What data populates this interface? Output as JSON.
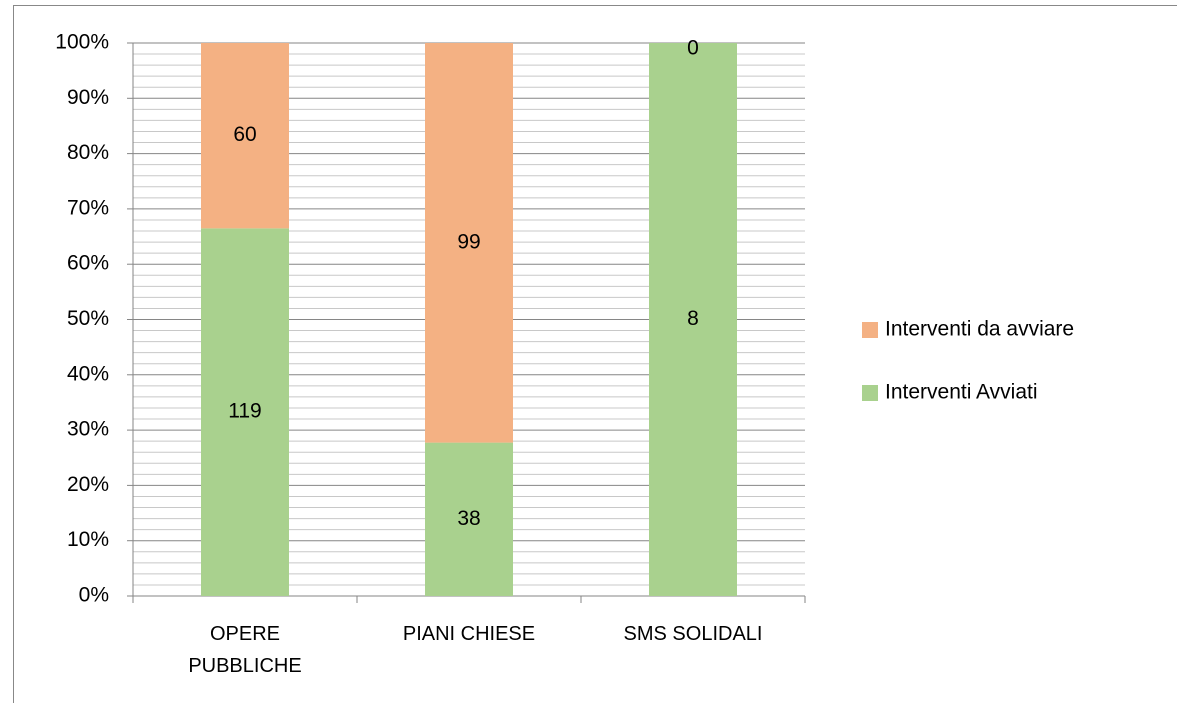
{
  "chart_data": {
    "type": "stacked_percent_bar",
    "categories": [
      "OPERE PUBBLICHE",
      "PIANI CHIESE",
      "SMS SOLIDALI"
    ],
    "series": [
      {
        "name": "Interventi Avviati",
        "color": "#a9d18e",
        "values": [
          119,
          38,
          8
        ]
      },
      {
        "name": "Interventi da avviare",
        "color": "#f4b183",
        "values": [
          60,
          99,
          0
        ]
      }
    ],
    "ylim": [
      0,
      100
    ],
    "yticks": [
      {
        "value": 0,
        "label": "0%"
      },
      {
        "value": 10,
        "label": "10%"
      },
      {
        "value": 20,
        "label": "20%"
      },
      {
        "value": 30,
        "label": "30%"
      },
      {
        "value": 40,
        "label": "40%"
      },
      {
        "value": 50,
        "label": "50%"
      },
      {
        "value": 60,
        "label": "60%"
      },
      {
        "value": 70,
        "label": "70%"
      },
      {
        "value": 80,
        "label": "80%"
      },
      {
        "value": 90,
        "label": "90%"
      },
      {
        "value": 100,
        "label": "100%"
      }
    ],
    "grid": true,
    "minor_divisions": 5,
    "legend": "right"
  }
}
